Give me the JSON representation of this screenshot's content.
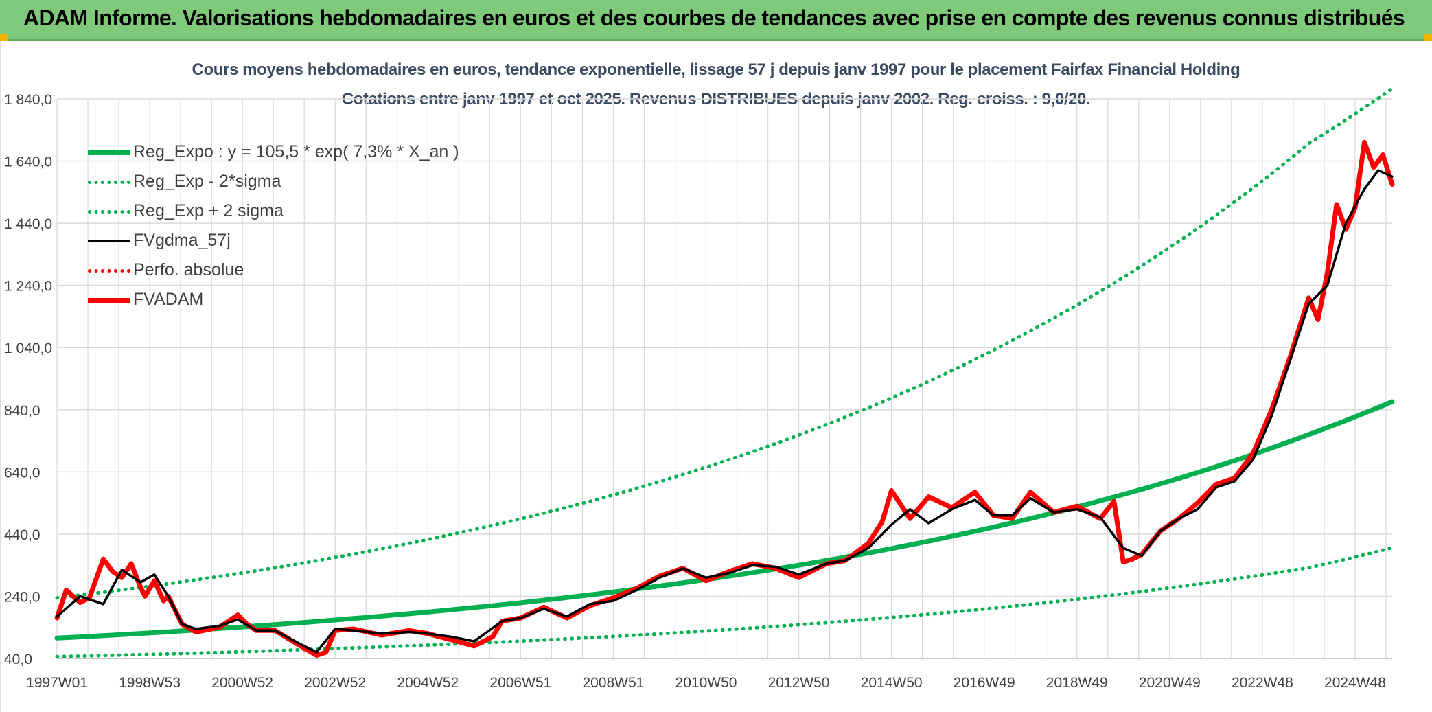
{
  "banner": {
    "title": "ADAM Informe. Valorisations hebdomadaires en euros et des courbes de tendances avec prise en compte des revenus connus distribués"
  },
  "colors": {
    "banner_bg": "#7fc97a",
    "reg_expo": "#00b050",
    "fvgdma": "#000000",
    "fvadam": "#ff0000",
    "perfo": "#ff0000",
    "grid": "#d9d9d9",
    "title_text": "#3b4a63"
  },
  "chart_data": {
    "type": "line",
    "title": "Cours moyens hebdomadaires en euros, tendance exponentielle, lissage 57 j depuis janv 1997 pour le placement Fairfax Financial Holding",
    "subtitle": "Cotations entre janv 1997 et oct 2025. Revenus DISTRIBUES depuis janv 2002. Reg. croiss. : 9,0/20.",
    "xlabel": "",
    "ylabel": "",
    "ylim": [
      40,
      1840
    ],
    "xlim": [
      1997.0,
      2025.8
    ],
    "y_ticks": [
      "40,0",
      "240,0",
      "440,0",
      "640,0",
      "840,0",
      "1 040,0",
      "1 240,0",
      "1 440,0",
      "1 640,0",
      "1 840,0"
    ],
    "y_tick_values": [
      40,
      240,
      440,
      640,
      840,
      1040,
      1240,
      1440,
      1640,
      1840
    ],
    "x_ticks": [
      "1997W01",
      "1998W53",
      "2000W52",
      "2002W52",
      "2004W52",
      "2006W51",
      "2008W51",
      "2010W50",
      "2012W50",
      "2014W50",
      "2016W49",
      "2018W49",
      "2020W49",
      "2022W48",
      "2024W48"
    ],
    "grid": true,
    "legend_position": "top-left",
    "series": [
      {
        "name": "Reg_Expo : y = 105,5 * exp( 7,3% *  X_an )",
        "style": "solid-thick",
        "color": "#00b050",
        "x": [
          1997,
          2000,
          2003,
          2006,
          2009,
          2012,
          2015,
          2018,
          2021,
          2024,
          2025.8
        ],
        "values": [
          105.5,
          131.4,
          163.7,
          203.8,
          253.8,
          316.1,
          393.6,
          490.2,
          610.5,
          760.2,
          866.0
        ]
      },
      {
        "name": "Reg_Exp - 2*sigma",
        "style": "dotted",
        "color": "#00b050",
        "x": [
          1997,
          2000,
          2003,
          2006,
          2009,
          2012,
          2015,
          2018,
          2021,
          2024,
          2025.8
        ],
        "values": [
          46,
          57,
          72,
          89,
          111,
          138,
          172,
          214,
          267,
          332,
          396
        ]
      },
      {
        "name": "Reg_Exp + 2 sigma",
        "style": "dotted",
        "color": "#00b050",
        "x": [
          1997,
          2000,
          2003,
          2006,
          2009,
          2012,
          2015,
          2018,
          2021,
          2024,
          2025.8
        ],
        "values": [
          235,
          293,
          365,
          455,
          566,
          705,
          878,
          1094,
          1362,
          1696,
          1873
        ]
      },
      {
        "name": "FVgdma_57j",
        "style": "solid",
        "color": "#000000",
        "x": [
          1997.0,
          1997.5,
          1998.0,
          1998.4,
          1998.8,
          1999.1,
          1999.4,
          1999.7,
          2000.0,
          2000.5,
          2000.9,
          2001.3,
          2001.7,
          2002.2,
          2002.6,
          2003.0,
          2003.4,
          2004.0,
          2004.6,
          2005.0,
          2005.5,
          2006.0,
          2006.6,
          2007.0,
          2007.5,
          2008.0,
          2008.5,
          2009.0,
          2009.5,
          2010.0,
          2010.5,
          2011.0,
          2011.5,
          2012.0,
          2012.5,
          2013.0,
          2013.6,
          2014.0,
          2014.5,
          2015.0,
          2015.4,
          2015.8,
          2016.3,
          2016.8,
          2017.2,
          2017.6,
          2018.0,
          2018.5,
          2019.0,
          2019.5,
          2020.0,
          2020.4,
          2020.8,
          2021.2,
          2021.6,
          2022.0,
          2022.4,
          2022.8,
          2023.2,
          2023.6,
          2024.0,
          2024.4,
          2024.8,
          2025.2,
          2025.5,
          2025.8
        ],
        "values": [
          175,
          240,
          215,
          325,
          285,
          310,
          240,
          150,
          135,
          145,
          165,
          130,
          130,
          90,
          60,
          135,
          130,
          120,
          125,
          120,
          110,
          95,
          160,
          170,
          200,
          175,
          215,
          225,
          260,
          300,
          330,
          300,
          315,
          340,
          335,
          310,
          345,
          355,
          395,
          470,
          520,
          475,
          520,
          550,
          500,
          500,
          555,
          510,
          520,
          495,
          395,
          370,
          450,
          490,
          520,
          590,
          610,
          680,
          820,
          1000,
          1180,
          1240,
          1440,
          1550,
          1610,
          1590
        ]
      },
      {
        "name": "Perfo. absolue",
        "style": "dotted",
        "color": "#ff0000",
        "x": [],
        "values": []
      },
      {
        "name": "FVADAM",
        "style": "solid-thick",
        "color": "#ff0000",
        "x": [
          1997.0,
          1997.2,
          1997.5,
          1997.7,
          1998.0,
          1998.2,
          1998.4,
          1998.6,
          1998.8,
          1998.9,
          1999.1,
          1999.3,
          1999.4,
          1999.7,
          2000.0,
          2000.5,
          2000.9,
          2001.1,
          2001.3,
          2001.7,
          2002.2,
          2002.6,
          2002.8,
          2003.0,
          2003.4,
          2004.0,
          2004.6,
          2005.0,
          2005.5,
          2006.0,
          2006.4,
          2006.6,
          2007.0,
          2007.5,
          2008.0,
          2008.5,
          2009.0,
          2009.5,
          2010.0,
          2010.5,
          2011.0,
          2011.5,
          2012.0,
          2012.5,
          2013.0,
          2013.6,
          2014.0,
          2014.5,
          2014.8,
          2015.0,
          2015.4,
          2015.8,
          2016.3,
          2016.8,
          2017.2,
          2017.6,
          2018.0,
          2018.5,
          2019.0,
          2019.5,
          2019.8,
          2020.0,
          2020.2,
          2020.4,
          2020.8,
          2021.2,
          2021.6,
          2022.0,
          2022.4,
          2022.8,
          2023.2,
          2023.6,
          2024.0,
          2024.2,
          2024.4,
          2024.6,
          2024.8,
          2025.0,
          2025.2,
          2025.4,
          2025.6,
          2025.8
        ],
        "values": [
          170,
          260,
          220,
          235,
          360,
          320,
          300,
          345,
          270,
          240,
          290,
          225,
          240,
          150,
          125,
          140,
          180,
          150,
          130,
          130,
          85,
          50,
          60,
          130,
          135,
          115,
          130,
          120,
          100,
          80,
          110,
          160,
          170,
          205,
          170,
          210,
          235,
          265,
          305,
          330,
          290,
          320,
          345,
          330,
          300,
          345,
          355,
          410,
          480,
          580,
          490,
          560,
          525,
          575,
          500,
          490,
          575,
          510,
          530,
          490,
          545,
          350,
          360,
          375,
          450,
          490,
          540,
          600,
          620,
          700,
          840,
          1010,
          1200,
          1130,
          1280,
          1500,
          1420,
          1490,
          1700,
          1620,
          1660,
          1565
        ]
      }
    ]
  }
}
